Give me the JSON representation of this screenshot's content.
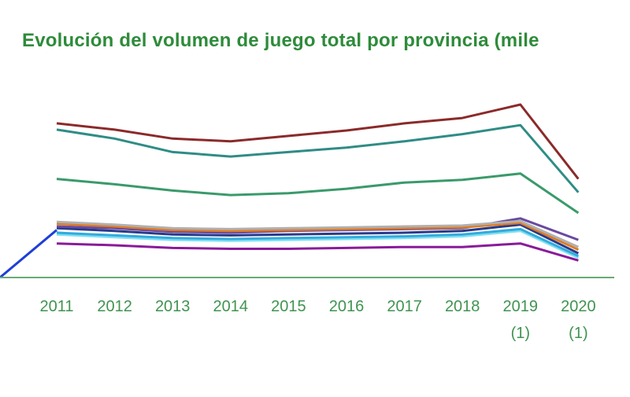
{
  "chart_data": {
    "type": "line",
    "title": "Evolución del volumen de juego total por provincia (mile",
    "categories": [
      {
        "label": "2011",
        "note": ""
      },
      {
        "label": "2012",
        "note": ""
      },
      {
        "label": "2013",
        "note": ""
      },
      {
        "label": "2014",
        "note": ""
      },
      {
        "label": "2015",
        "note": ""
      },
      {
        "label": "2016",
        "note": ""
      },
      {
        "label": "2017",
        "note": ""
      },
      {
        "label": "2018",
        "note": ""
      },
      {
        "label": "2019",
        "note": "(1)"
      },
      {
        "label": "2020",
        "note": "(1)"
      }
    ],
    "ylim": [
      0,
      200
    ],
    "grid": false,
    "legend": "none",
    "axis_color": "#6aaa78",
    "series": [
      {
        "color": "#8b2a2a",
        "values": [
          172,
          165,
          155,
          152,
          158,
          164,
          172,
          178,
          193,
          110
        ]
      },
      {
        "color": "#2f8c86",
        "values": [
          165,
          155,
          140,
          135,
          140,
          145,
          152,
          160,
          170,
          95
        ]
      },
      {
        "color": "#3a9a6a",
        "values": [
          110,
          104,
          97,
          92,
          94,
          99,
          106,
          109,
          116,
          72
        ]
      },
      {
        "color": "#b0b0b0",
        "values": [
          62,
          59,
          55,
          54,
          55,
          56,
          57,
          58,
          63,
          34
        ]
      },
      {
        "color": "#e07b20",
        "values": [
          60,
          57,
          53,
          52,
          53,
          54,
          55,
          56,
          61,
          31
        ]
      },
      {
        "color": "#6a4aa0",
        "values": [
          57,
          55,
          51,
          50,
          52,
          53,
          54,
          55,
          66,
          42
        ]
      },
      {
        "color": "#2a3a8a",
        "values": [
          55,
          52,
          48,
          47,
          48,
          49,
          50,
          52,
          59,
          27
        ]
      },
      {
        "color": "#33aadd",
        "values": [
          50,
          47,
          44,
          43,
          44,
          45,
          46,
          48,
          54,
          24
        ]
      },
      {
        "color": "#7fe0f0",
        "values": [
          48,
          45,
          42,
          41,
          42,
          43,
          44,
          46,
          52,
          22
        ]
      },
      {
        "color": "#8a1a9a",
        "values": [
          38,
          36,
          33,
          32,
          32,
          33,
          34,
          34,
          38,
          19
        ]
      }
    ],
    "partial_series": {
      "color": "#1f3ed8",
      "values": [
        0,
        53
      ]
    }
  }
}
